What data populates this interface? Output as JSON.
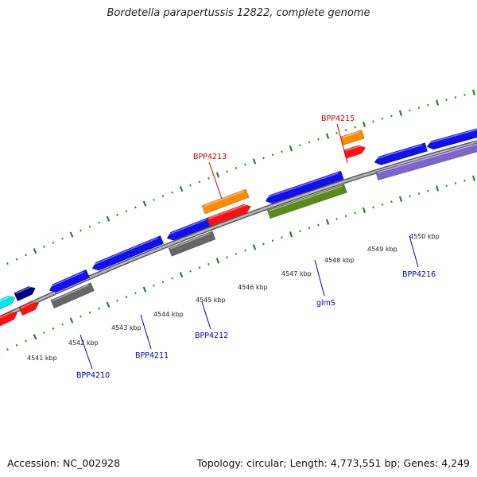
{
  "title": "Bordetella parapertussis 12822, complete genome",
  "accession": "Accession: NC_002928",
  "summary": "Topology: circular; Length: 4,773,551 bp; Genes: 4,249",
  "colors": {
    "backbone": "#8a8a8a",
    "tick": "#2f7d2f",
    "forward_label": "#cc0000",
    "reverse_label": "#0000aa",
    "ruler_label": "#222222"
  },
  "ruler_labels": [
    "4541 kbp",
    "4542 kbp",
    "4543 kbp",
    "4544 kbp",
    "4545 kbp",
    "4546 kbp",
    "4547 kbp",
    "4548 kbp",
    "4549 kbp",
    "4550 kbp"
  ],
  "gene_labels": [
    {
      "text": "BPP4215",
      "strand": "forward"
    },
    {
      "text": "BPP4213",
      "strand": "forward"
    },
    {
      "text": "BPP4210",
      "strand": "reverse"
    },
    {
      "text": "BPP4211",
      "strand": "reverse"
    },
    {
      "text": "BPP4212",
      "strand": "reverse"
    },
    {
      "text": "glmS",
      "strand": "reverse"
    },
    {
      "text": "BPP4216",
      "strand": "reverse"
    }
  ]
}
